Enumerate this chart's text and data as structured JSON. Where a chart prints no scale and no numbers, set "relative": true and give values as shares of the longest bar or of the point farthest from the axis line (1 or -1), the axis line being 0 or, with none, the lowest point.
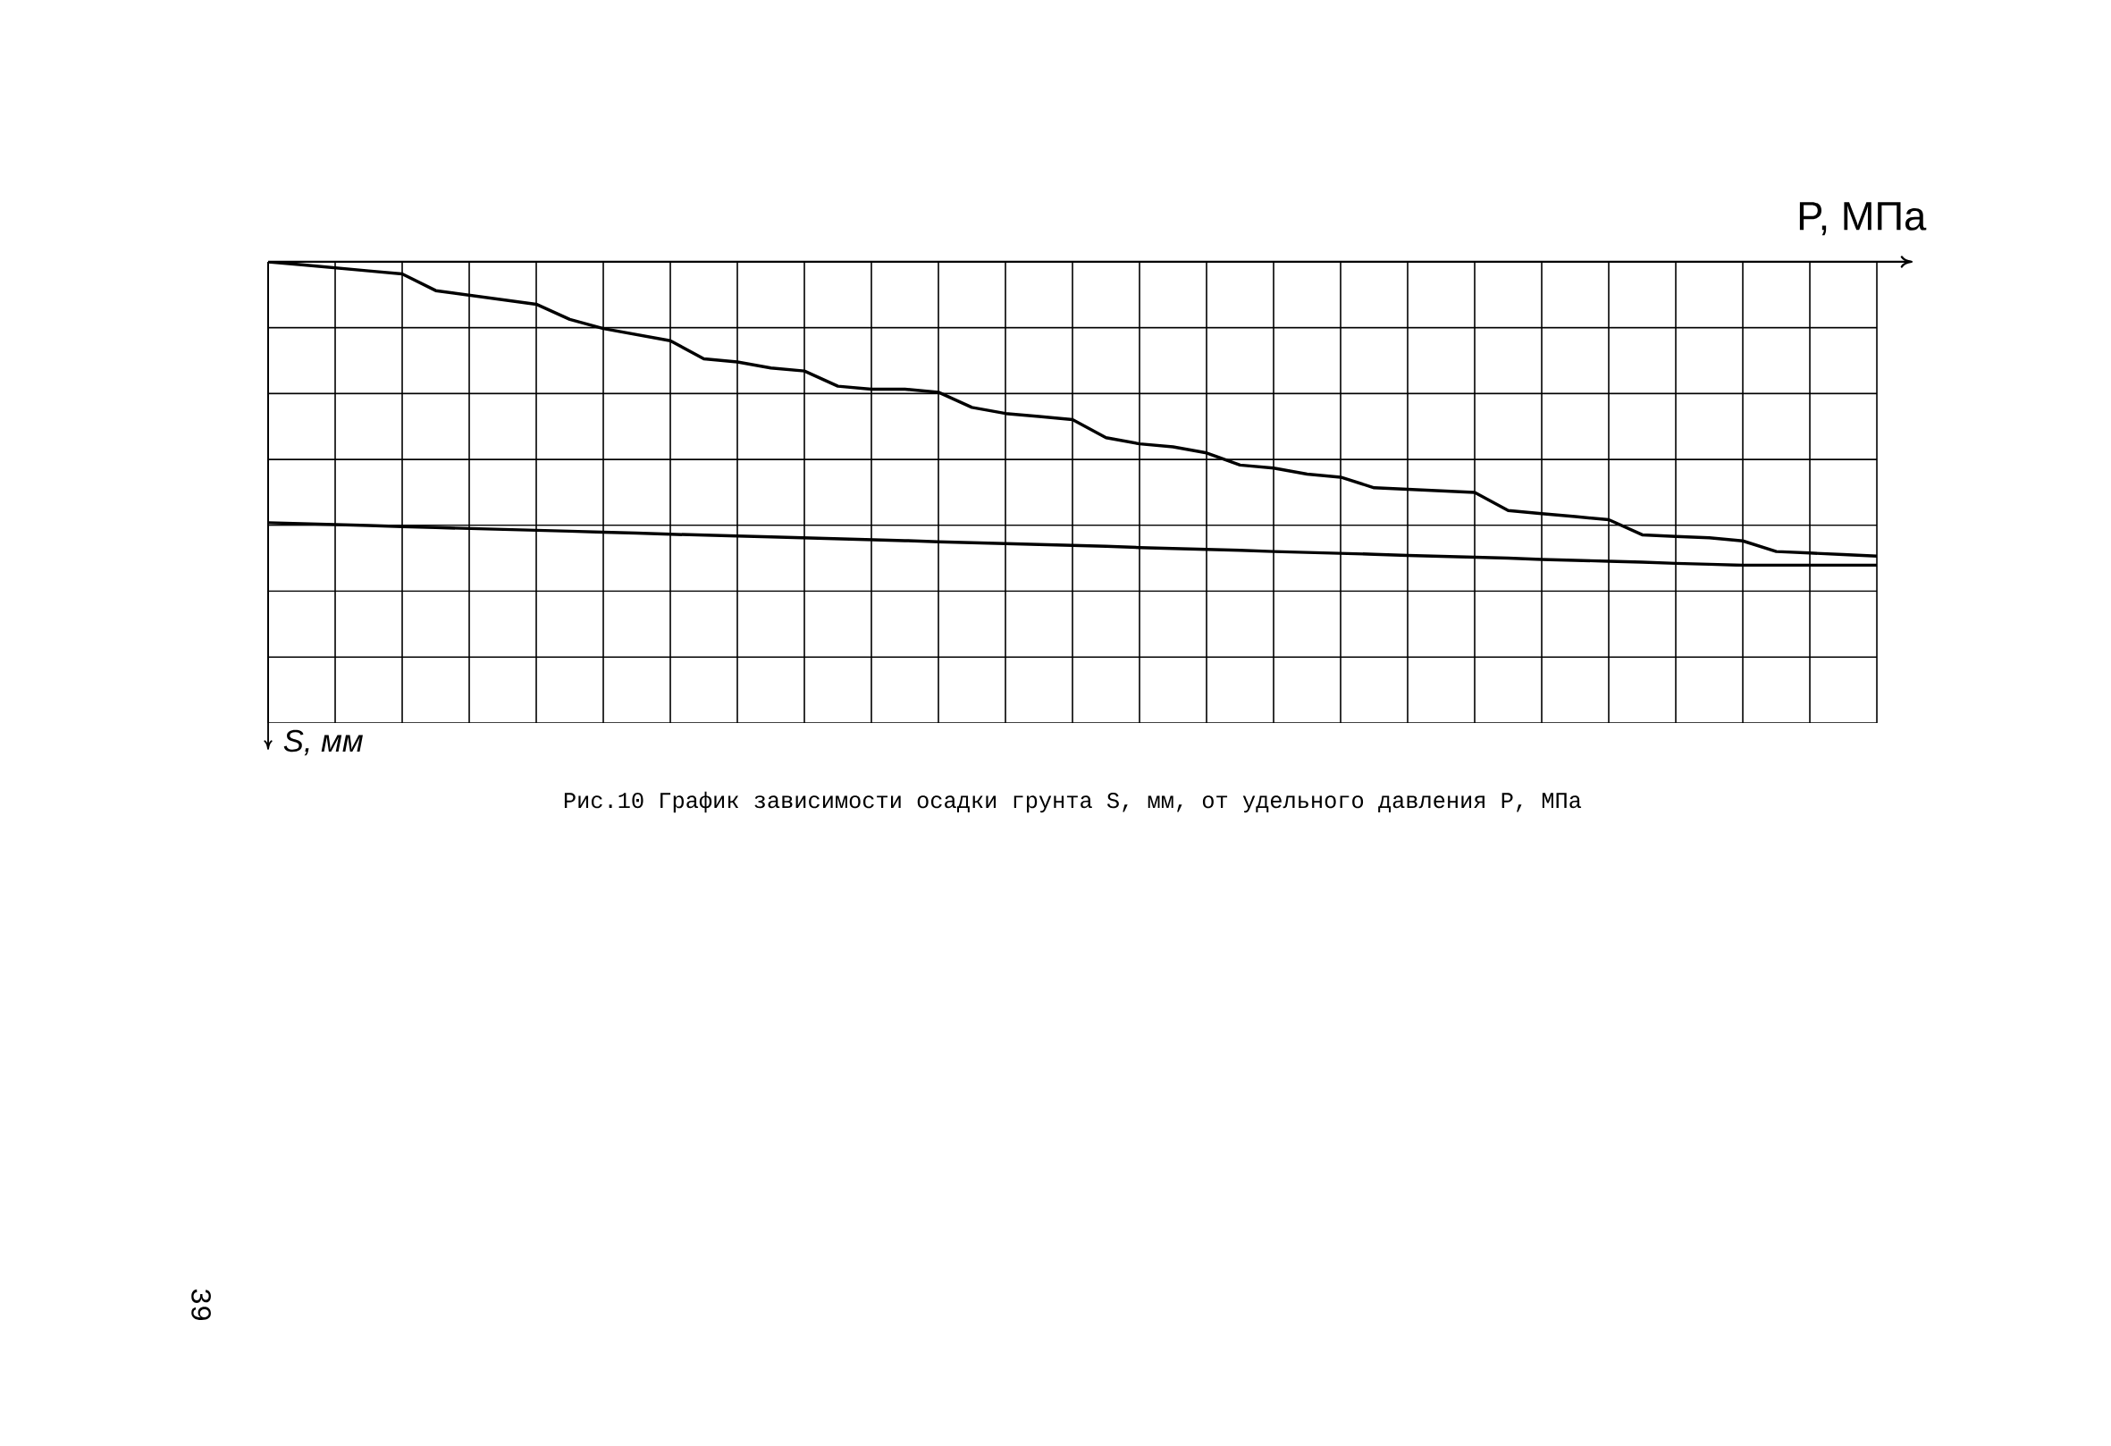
{
  "chart_data": {
    "type": "line",
    "title": "Рис.10 График зависимости осадки грунта S, мм, от удельного давления P, МПа",
    "xlabel": "P, МПа",
    "relative": true,
    "grid": true,
    "marker": "none",
    "line_style": "solid",
    "categories": [
      null,
      null,
      null,
      null,
      null,
      null,
      null,
      null,
      null,
      null,
      null,
      null,
      null,
      null,
      null,
      null,
      null,
      null,
      null,
      null,
      null,
      null,
      null,
      null,
      null,
      null,
      null,
      null,
      null,
      null,
      null,
      null,
      null,
      null,
      null,
      null,
      null,
      null,
      null,
      null,
      null,
      null,
      null,
      null,
      null,
      null,
      null,
      null,
      null
    ],
    "series": [
      {
        "color": "#000000",
        "values": [
          0,
          -0.01,
          -0.02,
          -0.03,
          -0.04,
          -0.095,
          -0.11,
          -0.125,
          -0.14,
          -0.19,
          -0.22,
          -0.24,
          -0.26,
          -0.32,
          -0.33,
          -0.35,
          -0.36,
          -0.41,
          -0.42,
          -0.42,
          -0.43,
          -0.48,
          -0.5,
          -0.51,
          -0.52,
          -0.58,
          -0.6,
          -0.61,
          -0.63,
          -0.67,
          -0.68,
          -0.7,
          -0.71,
          -0.745,
          -0.75,
          -0.755,
          -0.76,
          -0.82,
          -0.83,
          -0.84,
          -0.85,
          -0.9,
          -0.905,
          -0.91,
          -0.92,
          -0.955,
          -0.96,
          -0.965,
          -0.97
        ]
      },
      {
        "color": "#000000",
        "values": [
          -0.86,
          -0.863,
          -0.866,
          -0.869,
          -0.873,
          -0.876,
          -0.879,
          -0.882,
          -0.885,
          -0.888,
          -0.891,
          -0.894,
          -0.898,
          -0.901,
          -0.904,
          -0.907,
          -0.91,
          -0.913,
          -0.916,
          -0.919,
          -0.923,
          -0.926,
          -0.929,
          -0.932,
          -0.935,
          -0.938,
          -0.942,
          -0.945,
          -0.948,
          -0.951,
          -0.955,
          -0.958,
          -0.961,
          -0.964,
          -0.968,
          -0.971,
          -0.974,
          -0.977,
          -0.981,
          -0.984,
          -0.987,
          -0.99,
          -0.994,
          -0.997,
          -1.0,
          -1.0,
          -1.0,
          -1.0,
          -1.0
        ]
      }
    ],
    "annotations": [
      "39",
      "S, мм"
    ]
  }
}
